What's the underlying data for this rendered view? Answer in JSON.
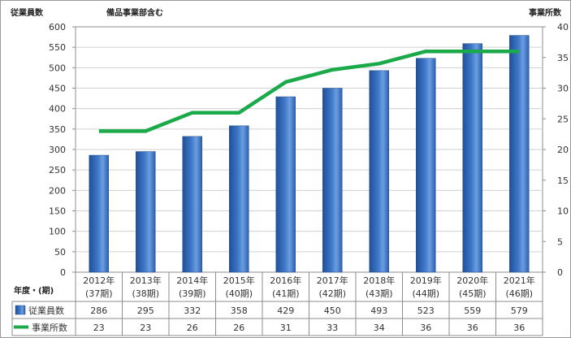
{
  "chart_data": {
    "type": "bar",
    "title": "",
    "annotation": "備品事業部含む",
    "row_header": "年度・(期)",
    "categories": [
      [
        "2012年",
        "(37期)"
      ],
      [
        "2013年",
        "(38期)"
      ],
      [
        "2014年",
        "(39期)"
      ],
      [
        "2015年",
        "(40期)"
      ],
      [
        "2016年",
        "(41期)"
      ],
      [
        "2017年",
        "(42期)"
      ],
      [
        "2018年",
        "(43期)"
      ],
      [
        "2019年",
        "(44期)"
      ],
      [
        "2020年",
        "(45期)"
      ],
      [
        "2021年",
        "(46期)"
      ]
    ],
    "series": [
      {
        "name": "従業員数",
        "type": "bar",
        "axis": "left",
        "color": "#3f78c8",
        "values": [
          286,
          295,
          332,
          358,
          429,
          450,
          493,
          523,
          559,
          579
        ]
      },
      {
        "name": "事業所数",
        "type": "line",
        "axis": "right",
        "color": "#1aaa4a",
        "values": [
          23,
          23,
          26,
          26,
          31,
          33,
          34,
          36,
          36,
          36
        ]
      }
    ],
    "y_left": {
      "label": "従業員数",
      "min": 0,
      "max": 600,
      "step": 50
    },
    "y_right": {
      "label": "事業所数",
      "min": 0,
      "max": 40,
      "step": 5
    },
    "grid": true,
    "legend": "data-table-bottom"
  }
}
